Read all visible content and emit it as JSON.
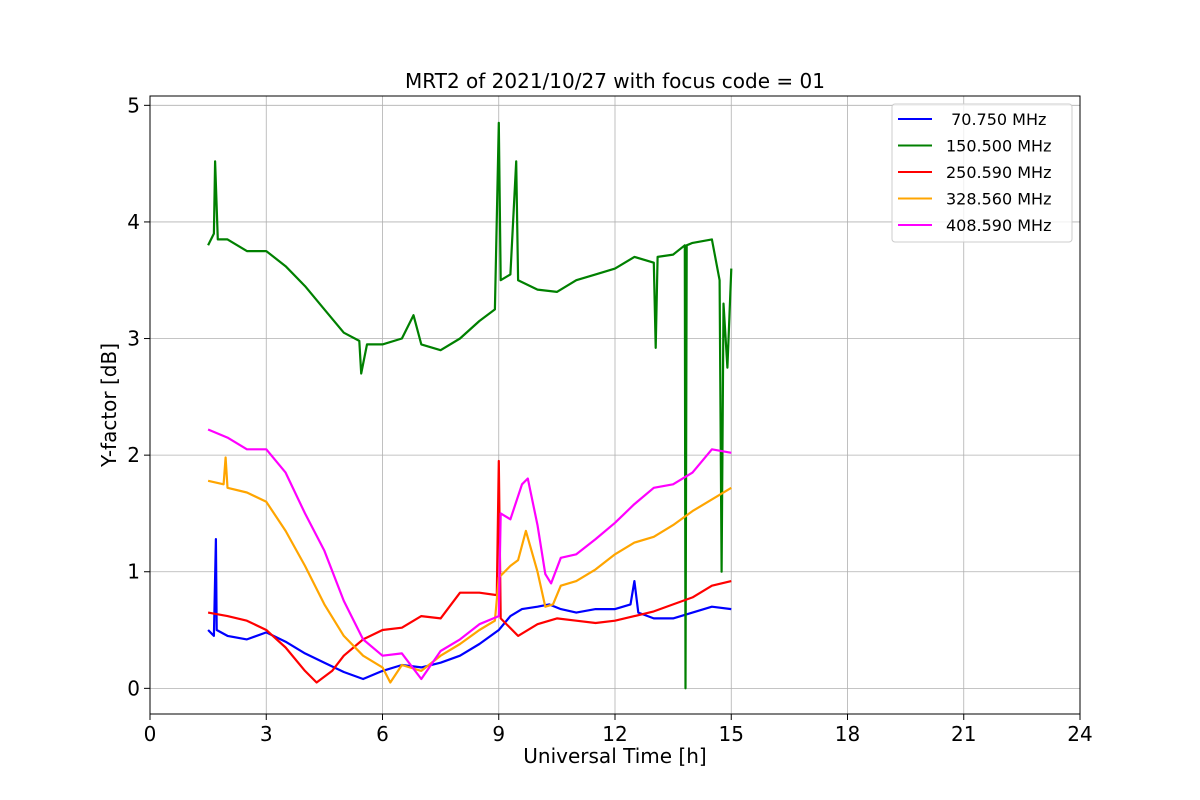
{
  "chart_data": {
    "type": "line",
    "title": "MRT2 of 2021/10/27 with focus code = 01",
    "xlabel": "Universal Time [h]",
    "ylabel": "Y-factor [dB]",
    "xlim": [
      0,
      24
    ],
    "ylim": [
      -0.22,
      5.08
    ],
    "xticks": [
      0,
      3,
      6,
      9,
      12,
      15,
      18,
      21,
      24
    ],
    "yticks": [
      0,
      1,
      2,
      3,
      4,
      5
    ],
    "grid": true,
    "legend_position": "top-right",
    "series": [
      {
        "name": " 70.750 MHz",
        "color": "#0000ff",
        "points": [
          [
            1.5,
            0.5
          ],
          [
            1.65,
            0.45
          ],
          [
            1.7,
            1.28
          ],
          [
            1.72,
            0.5
          ],
          [
            2,
            0.45
          ],
          [
            2.5,
            0.42
          ],
          [
            3,
            0.48
          ],
          [
            3.5,
            0.4
          ],
          [
            4,
            0.3
          ],
          [
            4.5,
            0.22
          ],
          [
            5,
            0.14
          ],
          [
            5.5,
            0.08
          ],
          [
            6,
            0.15
          ],
          [
            6.5,
            0.2
          ],
          [
            7,
            0.18
          ],
          [
            7.5,
            0.22
          ],
          [
            8,
            0.28
          ],
          [
            8.5,
            0.38
          ],
          [
            9,
            0.5
          ],
          [
            9.3,
            0.62
          ],
          [
            9.6,
            0.68
          ],
          [
            10,
            0.7
          ],
          [
            10.3,
            0.72
          ],
          [
            10.6,
            0.68
          ],
          [
            11,
            0.65
          ],
          [
            11.5,
            0.68
          ],
          [
            12,
            0.68
          ],
          [
            12.4,
            0.72
          ],
          [
            12.5,
            0.92
          ],
          [
            12.6,
            0.65
          ],
          [
            13,
            0.6
          ],
          [
            13.5,
            0.6
          ],
          [
            14,
            0.65
          ],
          [
            14.5,
            0.7
          ],
          [
            15,
            0.68
          ]
        ]
      },
      {
        "name": "150.500 MHz",
        "color": "#008000",
        "points": [
          [
            1.5,
            3.8
          ],
          [
            1.65,
            3.9
          ],
          [
            1.68,
            4.52
          ],
          [
            1.75,
            3.85
          ],
          [
            2,
            3.85
          ],
          [
            2.5,
            3.75
          ],
          [
            3,
            3.75
          ],
          [
            3.5,
            3.62
          ],
          [
            4,
            3.45
          ],
          [
            4.5,
            3.25
          ],
          [
            5,
            3.05
          ],
          [
            5.4,
            2.98
          ],
          [
            5.45,
            2.7
          ],
          [
            5.6,
            2.95
          ],
          [
            6,
            2.95
          ],
          [
            6.5,
            3.0
          ],
          [
            6.8,
            3.2
          ],
          [
            7,
            2.95
          ],
          [
            7.5,
            2.9
          ],
          [
            8,
            3.0
          ],
          [
            8.5,
            3.15
          ],
          [
            8.9,
            3.25
          ],
          [
            9.0,
            4.85
          ],
          [
            9.05,
            3.5
          ],
          [
            9.3,
            3.55
          ],
          [
            9.45,
            4.52
          ],
          [
            9.5,
            3.5
          ],
          [
            10,
            3.42
          ],
          [
            10.5,
            3.4
          ],
          [
            11,
            3.5
          ],
          [
            11.5,
            3.55
          ],
          [
            12,
            3.6
          ],
          [
            12.5,
            3.7
          ],
          [
            13,
            3.65
          ],
          [
            13.05,
            2.92
          ],
          [
            13.1,
            3.7
          ],
          [
            13.5,
            3.72
          ],
          [
            13.8,
            3.8
          ],
          [
            13.82,
            0.0
          ],
          [
            13.85,
            3.8
          ],
          [
            14,
            3.82
          ],
          [
            14.5,
            3.85
          ],
          [
            14.7,
            3.5
          ],
          [
            14.75,
            1.0
          ],
          [
            14.8,
            3.3
          ],
          [
            14.9,
            2.75
          ],
          [
            15,
            3.6
          ]
        ]
      },
      {
        "name": "250.590 MHz",
        "color": "#ff0000",
        "points": [
          [
            1.5,
            0.65
          ],
          [
            2,
            0.62
          ],
          [
            2.5,
            0.58
          ],
          [
            3,
            0.5
          ],
          [
            3.5,
            0.35
          ],
          [
            4,
            0.15
          ],
          [
            4.3,
            0.05
          ],
          [
            4.7,
            0.15
          ],
          [
            5,
            0.28
          ],
          [
            5.5,
            0.42
          ],
          [
            6,
            0.5
          ],
          [
            6.5,
            0.52
          ],
          [
            7,
            0.62
          ],
          [
            7.5,
            0.6
          ],
          [
            8,
            0.82
          ],
          [
            8.5,
            0.82
          ],
          [
            8.95,
            0.8
          ],
          [
            9.0,
            1.95
          ],
          [
            9.05,
            0.6
          ],
          [
            9.5,
            0.45
          ],
          [
            10,
            0.55
          ],
          [
            10.5,
            0.6
          ],
          [
            11,
            0.58
          ],
          [
            11.5,
            0.56
          ],
          [
            12,
            0.58
          ],
          [
            12.5,
            0.62
          ],
          [
            13,
            0.66
          ],
          [
            13.5,
            0.72
          ],
          [
            14,
            0.78
          ],
          [
            14.5,
            0.88
          ],
          [
            15,
            0.92
          ]
        ]
      },
      {
        "name": "328.560 MHz",
        "color": "#ffa500",
        "points": [
          [
            1.5,
            1.78
          ],
          [
            1.9,
            1.75
          ],
          [
            1.95,
            1.98
          ],
          [
            2.0,
            1.72
          ],
          [
            2.5,
            1.68
          ],
          [
            3,
            1.6
          ],
          [
            3.5,
            1.35
          ],
          [
            4,
            1.05
          ],
          [
            4.5,
            0.72
          ],
          [
            5,
            0.45
          ],
          [
            5.5,
            0.28
          ],
          [
            6,
            0.18
          ],
          [
            6.2,
            0.05
          ],
          [
            6.5,
            0.2
          ],
          [
            7,
            0.15
          ],
          [
            7.5,
            0.28
          ],
          [
            8,
            0.38
          ],
          [
            8.5,
            0.5
          ],
          [
            8.9,
            0.58
          ],
          [
            9.0,
            0.95
          ],
          [
            9.3,
            1.05
          ],
          [
            9.5,
            1.1
          ],
          [
            9.7,
            1.35
          ],
          [
            10,
            1.0
          ],
          [
            10.2,
            0.7
          ],
          [
            10.4,
            0.72
          ],
          [
            10.6,
            0.88
          ],
          [
            11,
            0.92
          ],
          [
            11.5,
            1.02
          ],
          [
            12,
            1.15
          ],
          [
            12.5,
            1.25
          ],
          [
            13,
            1.3
          ],
          [
            13.5,
            1.4
          ],
          [
            14,
            1.52
          ],
          [
            14.5,
            1.62
          ],
          [
            15,
            1.72
          ]
        ]
      },
      {
        "name": "408.590 MHz",
        "color": "#ff00ff",
        "points": [
          [
            1.5,
            2.22
          ],
          [
            2,
            2.15
          ],
          [
            2.5,
            2.05
          ],
          [
            3,
            2.05
          ],
          [
            3.5,
            1.85
          ],
          [
            4,
            1.5
          ],
          [
            4.5,
            1.18
          ],
          [
            5,
            0.75
          ],
          [
            5.5,
            0.42
          ],
          [
            6,
            0.28
          ],
          [
            6.5,
            0.3
          ],
          [
            7,
            0.08
          ],
          [
            7.5,
            0.32
          ],
          [
            8,
            0.42
          ],
          [
            8.5,
            0.55
          ],
          [
            9.0,
            0.62
          ],
          [
            9.05,
            1.5
          ],
          [
            9.3,
            1.45
          ],
          [
            9.6,
            1.75
          ],
          [
            9.75,
            1.8
          ],
          [
            10,
            1.4
          ],
          [
            10.2,
            0.98
          ],
          [
            10.35,
            0.9
          ],
          [
            10.6,
            1.12
          ],
          [
            11,
            1.15
          ],
          [
            11.5,
            1.28
          ],
          [
            12,
            1.42
          ],
          [
            12.5,
            1.58
          ],
          [
            13,
            1.72
          ],
          [
            13.5,
            1.75
          ],
          [
            14,
            1.85
          ],
          [
            14.5,
            2.05
          ],
          [
            15,
            2.02
          ]
        ]
      }
    ]
  }
}
